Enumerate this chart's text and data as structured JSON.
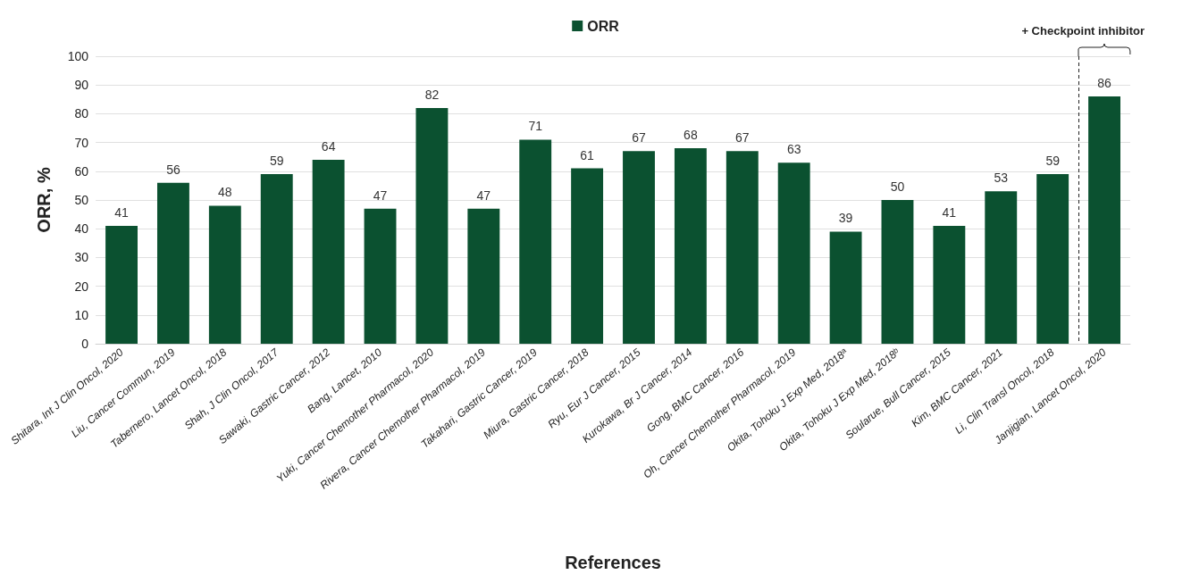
{
  "chart_data": {
    "type": "bar",
    "xlabel": "References",
    "ylabel": "ORR, %",
    "categories": [
      "Shitara, Int J Clin Oncol, 2020",
      "Liu, Cancer Commun, 2019",
      "Tabernero, Lancet Oncol, 2018",
      "Shah, J Clin Oncol, 2017",
      "Sawaki, Gastric Cancer, 2012",
      "Bang, Lancet, 2010",
      "Yuki, Cancer Chemother Pharmacol, 2020",
      "Rivera, Cancer Chemother Pharmacol, 2019",
      "Takahari, Gastric Cancer, 2019",
      "Miura, Gastric Cancer, 2018",
      "Ryu, Eur J Cancer, 2015",
      "Kurokawa, Br J Cancer, 2014",
      "Gong, BMC Cancer, 2016",
      "Oh, Cancer Chemother Pharmacol, 2019",
      "Okita, Tohoku J Exp Med, 2018ᵃ",
      "Okita, Tohoku J Exp Med, 2018ᵇ",
      "Soularue, Bull Cancer, 2015",
      "Kim, BMC Cancer, 2021",
      "Li, Clin Transl Oncol, 2018",
      "Janjigian, Lancet Oncol, 2020"
    ],
    "series": [
      {
        "name": "ORR",
        "color": "#0b5130",
        "values": [
          41,
          56,
          48,
          59,
          64,
          47,
          82,
          47,
          71,
          61,
          67,
          68,
          67,
          63,
          39,
          50,
          41,
          53,
          59,
          86
        ]
      }
    ],
    "ylim": [
      0,
      100
    ],
    "yticks": [
      0,
      10,
      20,
      30,
      40,
      50,
      60,
      70,
      80,
      90,
      100
    ],
    "grid": "y",
    "legend": "top",
    "data_labels": true,
    "annotations": [
      "+ Checkpoint inhibitor"
    ],
    "ref_lines": [
      {
        "axis": "x",
        "value": "Janjigian, Lancet Oncol, 2020",
        "line_style": "dashed"
      }
    ]
  }
}
